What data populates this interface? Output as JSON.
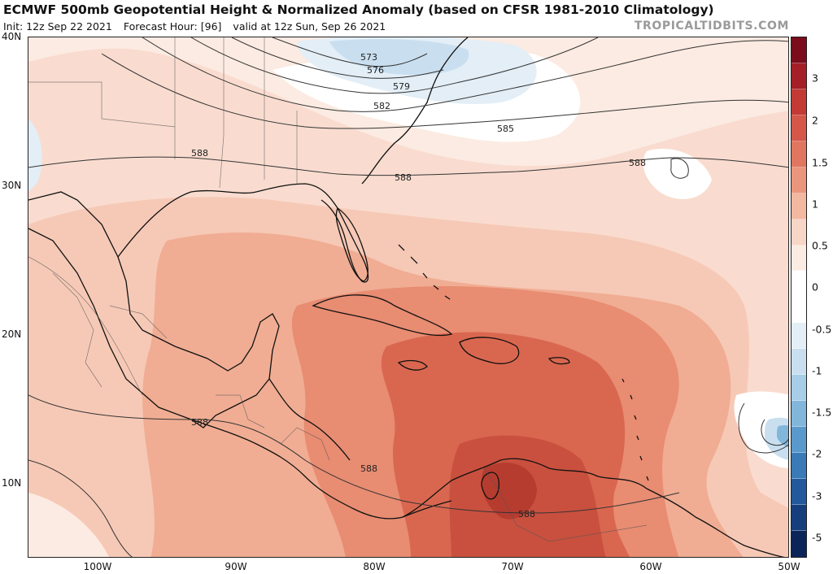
{
  "header": {
    "title": "ECMWF 500mb Geopotential Height & Normalized Anomaly (based on CFSR 1981-2010 Climatology)",
    "init": "Init: 12z Sep 22 2021",
    "forecast_hour": "Forecast Hour: [96]",
    "valid": "valid at 12z Sun, Sep 26 2021",
    "brand": "TROPICALTIDBITS.COM"
  },
  "axes": {
    "lat_labels": [
      "40N",
      "30N",
      "20N",
      "10N"
    ],
    "lon_labels": [
      "100W",
      "90W",
      "80W",
      "70W",
      "60W",
      "50W"
    ]
  },
  "contours": {
    "labels": [
      "573",
      "576",
      "579",
      "582",
      "585",
      "588"
    ]
  },
  "colorbar": {
    "tick_labels": [
      "3",
      "2",
      "1.5",
      "1",
      "0.5",
      "0",
      "-0.5",
      "-1",
      "-1.5",
      "-2",
      "-3",
      "-5"
    ],
    "colors": [
      "#7a0c1b",
      "#a51f26",
      "#c33a35",
      "#d4574a",
      "#e0765f",
      "#ea967c",
      "#f2b8a0",
      "#f8d6c7",
      "#fcebe2",
      "#ffffff",
      "#ffffff",
      "#e3eef6",
      "#c9dff0",
      "#a8cde6",
      "#82b6da",
      "#5a99cb",
      "#3a7ab7",
      "#23589c",
      "#173e7c",
      "#0c2559"
    ]
  }
}
